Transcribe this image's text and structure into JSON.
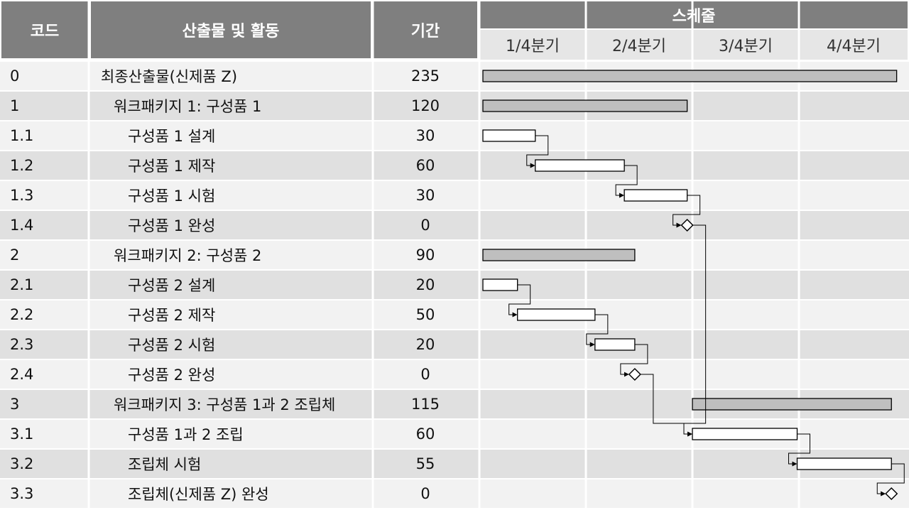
{
  "header": {
    "code": "코드",
    "activity": "산출물 및 활동",
    "duration": "기간",
    "schedule": "스케줄",
    "quarters": [
      "1/4분기",
      "2/4분기",
      "3/4분기",
      "4/4분기"
    ]
  },
  "rows": [
    {
      "code": "0",
      "name": "최종산출물(신제품 Z)",
      "duration": "235",
      "level": 0
    },
    {
      "code": "1",
      "name": "워크패키지 1: 구성품 1",
      "duration": "120",
      "level": 1
    },
    {
      "code": "1.1",
      "name": "구성품 1 설계",
      "duration": "30",
      "level": 2
    },
    {
      "code": "1.2",
      "name": "구성품 1 제작",
      "duration": "60",
      "level": 2
    },
    {
      "code": "1.3",
      "name": "구성품 1 시험",
      "duration": "30",
      "level": 2
    },
    {
      "code": "1.4",
      "name": "구성품 1 완성",
      "duration": "0",
      "level": 2
    },
    {
      "code": "2",
      "name": "워크패키지 2: 구성품 2",
      "duration": "90",
      "level": 1
    },
    {
      "code": "2.1",
      "name": "구성품 2 설계",
      "duration": "20",
      "level": 2
    },
    {
      "code": "2.2",
      "name": "구성품 2 제작",
      "duration": "50",
      "level": 2
    },
    {
      "code": "2.3",
      "name": "구성품 2 시험",
      "duration": "20",
      "level": 2
    },
    {
      "code": "2.4",
      "name": "구성품 2 완성",
      "duration": "0",
      "level": 2
    },
    {
      "code": "3",
      "name": "워크패키지 3: 구성품 1과 2 조립체",
      "duration": "115",
      "level": 1
    },
    {
      "code": "3.1",
      "name": "구성품 1과 2 조립",
      "duration": "60",
      "level": 2
    },
    {
      "code": "3.2",
      "name": "조립체 시험",
      "duration": "55",
      "level": 2
    },
    {
      "code": "3.3",
      "name": "조립체(신제품 Z) 완성",
      "duration": "0",
      "level": 2
    }
  ],
  "colors": {
    "header_bg": "#7f7f7f",
    "row_light": "#f2f2f2",
    "row_dark": "#e0e0e0",
    "summary_bar": "#bfbfbf",
    "task_bar": "#ffffff"
  },
  "chart_data": {
    "type": "gantt",
    "x_range": [
      0,
      400
    ],
    "tasks": [
      {
        "code": "0",
        "start": 0,
        "end": 395,
        "kind": "summary"
      },
      {
        "code": "1",
        "start": 0,
        "end": 195,
        "kind": "summary"
      },
      {
        "code": "1.1",
        "start": 0,
        "end": 50,
        "kind": "task"
      },
      {
        "code": "1.2",
        "start": 50,
        "end": 135,
        "kind": "task"
      },
      {
        "code": "1.3",
        "start": 135,
        "end": 195,
        "kind": "task"
      },
      {
        "code": "1.4",
        "start": 195,
        "end": 195,
        "kind": "milestone"
      },
      {
        "code": "2",
        "start": 0,
        "end": 145,
        "kind": "summary"
      },
      {
        "code": "2.1",
        "start": 0,
        "end": 33,
        "kind": "task"
      },
      {
        "code": "2.2",
        "start": 33,
        "end": 107,
        "kind": "task"
      },
      {
        "code": "2.3",
        "start": 107,
        "end": 145,
        "kind": "task"
      },
      {
        "code": "2.4",
        "start": 145,
        "end": 145,
        "kind": "milestone"
      },
      {
        "code": "3",
        "start": 200,
        "end": 390,
        "kind": "summary"
      },
      {
        "code": "3.1",
        "start": 200,
        "end": 300,
        "kind": "task"
      },
      {
        "code": "3.2",
        "start": 300,
        "end": 390,
        "kind": "task"
      },
      {
        "code": "3.3",
        "start": 390,
        "end": 390,
        "kind": "milestone"
      }
    ],
    "links": [
      [
        "1.1",
        "1.2"
      ],
      [
        "1.2",
        "1.3"
      ],
      [
        "1.3",
        "1.4"
      ],
      [
        "1.4",
        "3.1"
      ],
      [
        "2.1",
        "2.2"
      ],
      [
        "2.2",
        "2.3"
      ],
      [
        "2.3",
        "2.4"
      ],
      [
        "2.4",
        "3.1"
      ],
      [
        "3.1",
        "3.2"
      ],
      [
        "3.2",
        "3.3"
      ]
    ]
  }
}
